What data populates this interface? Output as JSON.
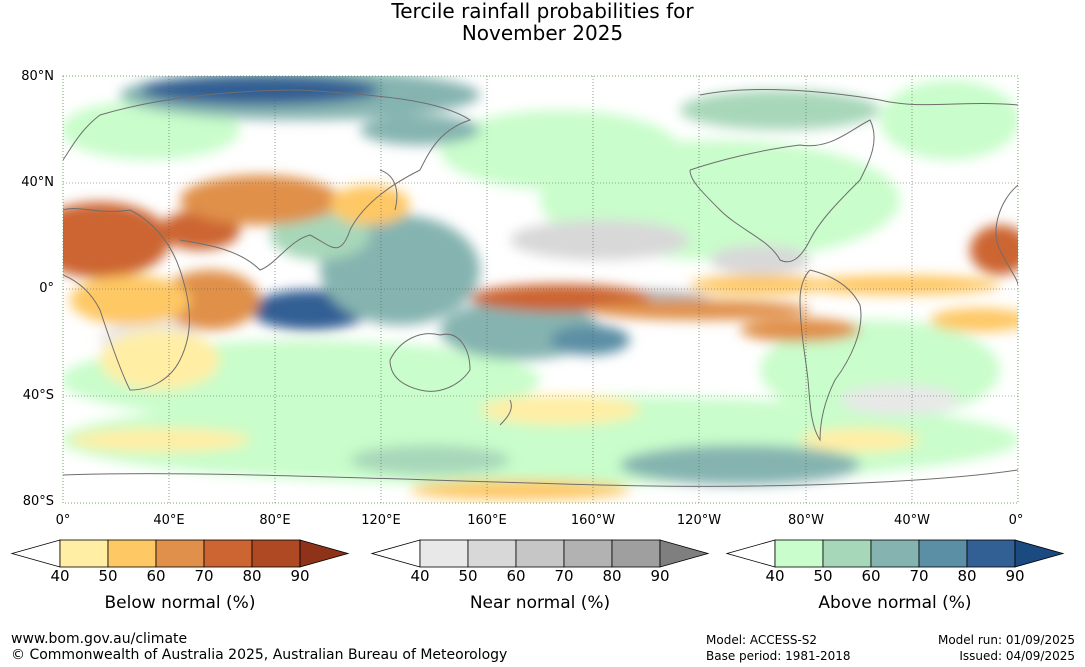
{
  "title_line1": "Tercile rainfall probabilities for",
  "title_line2": "November 2025",
  "lat_labels": [
    "80°N",
    "40°N",
    "0°",
    "40°S",
    "80°S"
  ],
  "lon_labels": [
    "0°",
    "40°E",
    "80°E",
    "120°E",
    "160°E",
    "160°W",
    "120°W",
    "80°W",
    "40°W",
    "0°"
  ],
  "colorbars": [
    {
      "title": "Below normal (%)",
      "ticks": [
        "40",
        "50",
        "60",
        "70",
        "80",
        "90"
      ],
      "colors": [
        "#ffffff",
        "#ffeea4",
        "#fec865",
        "#e0904a",
        "#cc6532",
        "#ae4924",
        "#8f321a"
      ]
    },
    {
      "title": "Near normal (%)",
      "ticks": [
        "40",
        "50",
        "60",
        "70",
        "80",
        "90"
      ],
      "colors": [
        "#ffffff",
        "#e8e8e8",
        "#d8d8d8",
        "#c6c6c6",
        "#b2b2b2",
        "#9f9f9f",
        "#7f7f7f"
      ]
    },
    {
      "title": "Above normal (%)",
      "ticks": [
        "40",
        "50",
        "60",
        "70",
        "80",
        "90"
      ],
      "colors": [
        "#ffffff",
        "#c9fdcb",
        "#a7d7b9",
        "#85b4b0",
        "#5b8fa5",
        "#325f94",
        "#1a4a80"
      ]
    }
  ],
  "footer": {
    "url": "www.bom.gov.au/climate",
    "copyright": "© Commonwealth of Australia 2025, Australian Bureau of Meteorology",
    "model": "Model: ACCESS-S2",
    "base_period": "Base period: 1981-2018",
    "model_run": "Model run: 01/09/2025",
    "issued": "Issued: 04/09/2025"
  }
}
